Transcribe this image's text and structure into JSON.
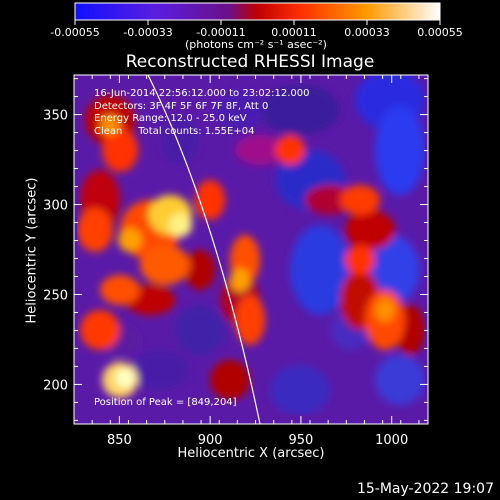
{
  "colorbar": {
    "tick_labels": [
      "-0.00055",
      "-0.00033",
      "-0.00011",
      "0.00011",
      "0.00033",
      "0.00055"
    ],
    "tick_values": [
      -0.00055,
      -0.00033,
      -0.00011,
      0.00011,
      0.00033,
      0.00055
    ],
    "units_label": "(photons cm⁻² s⁻¹ asec⁻²)"
  },
  "plot": {
    "title": "Reconstructed RHESSI Image",
    "xlabel": "Heliocentric X (arcsec)",
    "ylabel": "Heliocentric Y (arcsec)",
    "x_ticks": [
      850,
      900,
      950,
      1000
    ],
    "y_ticks": [
      200,
      250,
      300,
      350
    ],
    "xlim": [
      825,
      1020
    ],
    "ylim": [
      178,
      372
    ],
    "peak_position": [
      849,
      204
    ],
    "info": [
      "16-Jun-2014 22:56:12.000 to 23:02:12.000",
      "Detectors: 3F 4F 5F 6F 7F 8F, Att 0",
      "Energy Range: 12.0 - 25.0 keV",
      "Clean     Total counts: 1.55E+04"
    ],
    "peak_label": "Position of Peak = [849,204]"
  },
  "footer": {
    "timestamp": "15-May-2022 19:07"
  },
  "colors": {
    "background": "#000000",
    "axes": "#ffffff",
    "negative_low": "#2030ff",
    "negative_mid": "#6a2cc8",
    "positive_mid": "#ff3c00",
    "positive_high": "#ffffa0"
  }
}
